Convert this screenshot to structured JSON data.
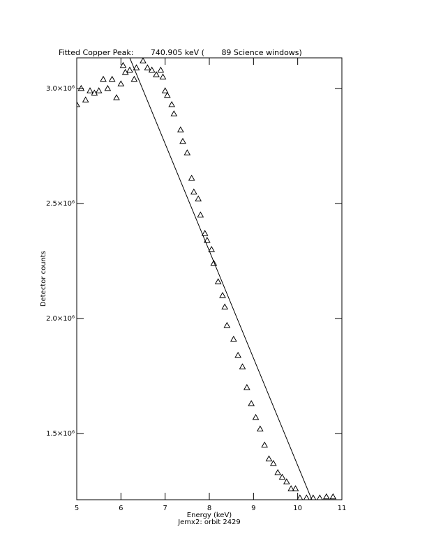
{
  "chart_data": {
    "type": "scatter",
    "title": "Fitted Copper Peak:       740.905 keV (       89 Science windows)",
    "subtitle": "Jemx2: orbit 2429",
    "x_label": "Energy (keV)",
    "y_label": "Detector counts",
    "xlim": [
      5,
      11
    ],
    "ylim": [
      1212000,
      3133000
    ],
    "xticks": [
      5,
      6,
      7,
      8,
      9,
      10,
      11
    ],
    "yticks": [
      {
        "value": 1500000,
        "label": "1.5×10⁶"
      },
      {
        "value": 2000000,
        "label": "2.0×10⁶"
      },
      {
        "value": 2500000,
        "label": "2.5×10⁶"
      },
      {
        "value": 3000000,
        "label": "3.0×10⁶"
      }
    ],
    "series": [
      {
        "marker": "triangle",
        "color": "#000000",
        "x": [
          5.0,
          5.1,
          5.2,
          5.3,
          5.4,
          5.5,
          5.6,
          5.7,
          5.8,
          5.9,
          6.0,
          6.05,
          6.1,
          6.2,
          6.3,
          6.35,
          6.5,
          6.6,
          6.7,
          6.8,
          6.9,
          6.95,
          7.0,
          7.05,
          7.15,
          7.2,
          7.35,
          7.4,
          7.5,
          7.6,
          7.65,
          7.75,
          7.8,
          7.9,
          7.95,
          8.05,
          8.1,
          8.2,
          8.3,
          8.35,
          8.4,
          8.55,
          8.65,
          8.75,
          8.85,
          8.95,
          9.05,
          9.15,
          9.25,
          9.35,
          9.45,
          9.55,
          9.65,
          9.75,
          9.85,
          9.95,
          10.05,
          10.2,
          10.35,
          10.5,
          10.65,
          10.8
        ],
        "values": [
          2930000,
          3000000,
          2950000,
          2990000,
          2980000,
          2990000,
          3040000,
          3000000,
          3040000,
          2960000,
          3020000,
          3100000,
          3070000,
          3080000,
          3040000,
          3090000,
          3120000,
          3090000,
          3080000,
          3060000,
          3080000,
          3050000,
          2990000,
          2970000,
          2930000,
          2890000,
          2820000,
          2770000,
          2720000,
          2610000,
          2550000,
          2520000,
          2450000,
          2370000,
          2340000,
          2300000,
          2240000,
          2160000,
          2100000,
          2050000,
          1970000,
          1910000,
          1840000,
          1790000,
          1700000,
          1630000,
          1570000,
          1520000,
          1450000,
          1390000,
          1370000,
          1330000,
          1310000,
          1290000,
          1260000,
          1260000,
          1220000,
          1220000,
          1220000,
          1220000,
          1225000,
          1225000
        ]
      },
      {
        "marker": "line",
        "color": "#000000",
        "x": [
          6.2,
          10.32
        ],
        "values": [
          3133000,
          1212000
        ]
      }
    ]
  }
}
